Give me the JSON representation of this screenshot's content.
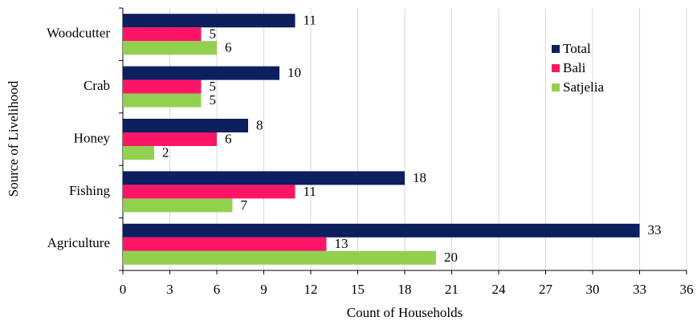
{
  "chart_data": {
    "type": "hbar",
    "categories": [
      "Woodcutter",
      "Crab",
      "Honey",
      "Fishing",
      "Agriculture"
    ],
    "series": [
      {
        "name": "Total",
        "color": "#0c1f5e",
        "values": [
          11,
          10,
          8,
          18,
          33
        ]
      },
      {
        "name": "Bali",
        "color": "#ff1567",
        "values": [
          5,
          5,
          6,
          11,
          13
        ]
      },
      {
        "name": "Satjelia",
        "color": "#92d050",
        "values": [
          6,
          5,
          2,
          7,
          20
        ]
      }
    ],
    "xlabel": "Count of Households",
    "ylabel": "Source of Livelihood",
    "xlim": [
      0,
      36
    ],
    "xticks": [
      0,
      3,
      6,
      9,
      12,
      15,
      18,
      21,
      24,
      27,
      30,
      33,
      36
    ],
    "grid": true,
    "legend": "upper right"
  }
}
